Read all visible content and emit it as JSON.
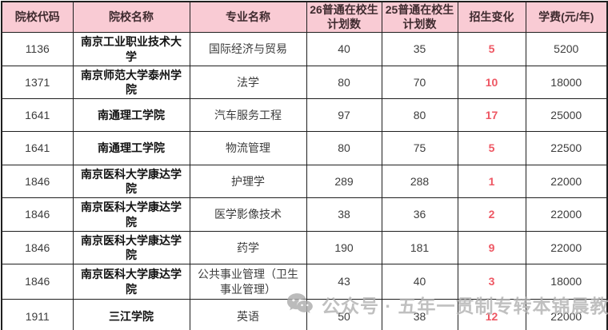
{
  "chart_data": {
    "type": "table",
    "title": "",
    "columns": [
      "院校代码",
      "院校名称",
      "专业名称",
      "26普通在校生计划数",
      "25普通在校生计划数",
      "招生变化",
      "学费(元/年)"
    ],
    "rows": [
      [
        "1136",
        "南京工业职业技术大学",
        "国际经济与贸易",
        "40",
        "35",
        "5",
        "5200"
      ],
      [
        "1371",
        "南京师范大学泰州学院",
        "法学",
        "80",
        "70",
        "10",
        "18000"
      ],
      [
        "1641",
        "南通理工学院",
        "汽车服务工程",
        "97",
        "80",
        "17",
        "25000"
      ],
      [
        "1641",
        "南通理工学院",
        "物流管理",
        "80",
        "75",
        "5",
        "22500"
      ],
      [
        "1846",
        "南京医科大学康达学院",
        "护理学",
        "289",
        "288",
        "1",
        "22000"
      ],
      [
        "1846",
        "南京医科大学康达学院",
        "医学影像技术",
        "38",
        "36",
        "2",
        "22000"
      ],
      [
        "1846",
        "南京医科大学康达学院",
        "药学",
        "190",
        "181",
        "9",
        "22000"
      ],
      [
        "1846",
        "南京医科大学康达学院",
        "公共事业管理（卫生事业管理）",
        "43",
        "40",
        "3",
        "18000"
      ],
      [
        "1911",
        "三江学院",
        "英语",
        "50",
        "38",
        "12",
        "22000"
      ]
    ]
  },
  "watermark": {
    "icon": "wechat-icon",
    "text": "公众号 · 五年一贯制专转本锦晨教育"
  },
  "colors": {
    "header_bg": "#f9cbd4",
    "header_text": "#3f2b2f",
    "border": "#1f1f1f",
    "body_text": "#3d3d3d",
    "college_name_text": "#121212",
    "change_red": "#ee5763",
    "watermark_gray": "#b3b3b3"
  }
}
